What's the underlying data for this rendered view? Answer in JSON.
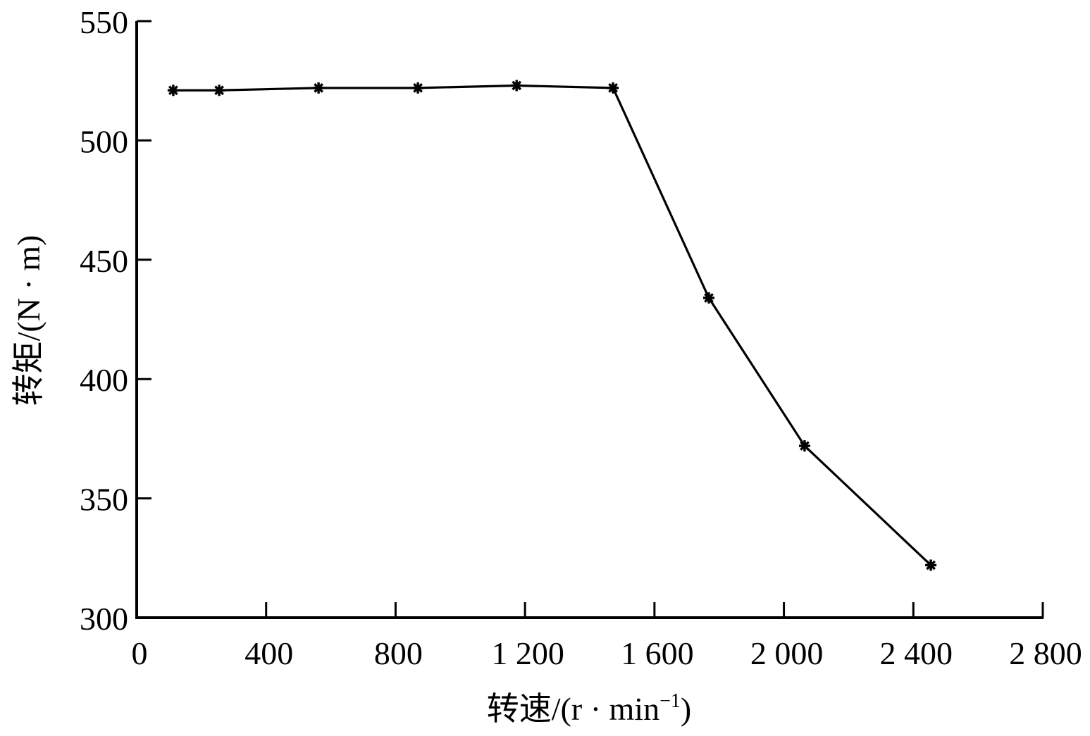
{
  "chart_data": {
    "type": "line",
    "title": "",
    "xlabel": "转速/(r · min⁻¹)",
    "xlabel_parts": {
      "main": "转速/(r · min",
      "sup": "−1",
      "close": ")"
    },
    "ylabel": "转矩/(N · m)",
    "xlim": [
      0,
      2800
    ],
    "ylim": [
      300,
      550
    ],
    "xticks": [
      0,
      400,
      800,
      1200,
      1600,
      2000,
      2400,
      2800
    ],
    "xtick_labels": [
      "0",
      "400",
      "800",
      "1 200",
      "1 600",
      "2 000",
      "2 400",
      "2 800"
    ],
    "yticks": [
      300,
      350,
      400,
      450,
      500,
      550
    ],
    "ytick_labels": [
      "300",
      "350",
      "400",
      "450",
      "500",
      "550"
    ],
    "grid": false,
    "legend": null,
    "marker": "asterisk",
    "line_color": "#000000",
    "series": [
      {
        "name": "转矩",
        "x": [
          113,
          255,
          562,
          869,
          1174,
          1472,
          1768,
          2064,
          2454
        ],
        "y": [
          521,
          521,
          522,
          522,
          523,
          522,
          434,
          372,
          322
        ]
      }
    ]
  }
}
